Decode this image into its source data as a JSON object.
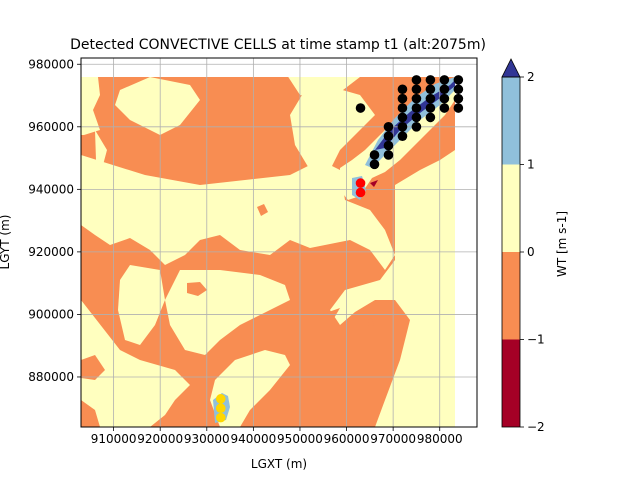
{
  "chart_data": {
    "type": "contour-scatter",
    "title": "Detected CONVECTIVE CELLS at time stamp t1 (alt:2075m)",
    "xlabel": "LGXT (m)",
    "ylabel": "LGYT (m)",
    "xlim": [
      903000,
      988000
    ],
    "ylim": [
      864000,
      982000
    ],
    "field_extent": {
      "x": [
        903000,
        984000
      ],
      "y": [
        864000,
        975000
      ]
    },
    "x_ticks": [
      910000,
      920000,
      930000,
      940000,
      950000,
      960000,
      970000,
      980000
    ],
    "x_tick_labels": [
      "910000",
      "920000",
      "930000",
      "940000",
      "950000",
      "960000",
      "970000",
      "980000"
    ],
    "y_ticks": [
      880000,
      900000,
      920000,
      940000,
      960000,
      980000
    ],
    "y_tick_labels": [
      "880000",
      "900000",
      "920000",
      "940000",
      "960000",
      "980000"
    ],
    "grid": true,
    "colorbar": {
      "label": "WT [m s-1]",
      "levels": [
        -2,
        -1,
        0,
        1,
        2
      ],
      "tick_labels": [
        "−2",
        "−1",
        "0",
        "1",
        "2"
      ],
      "colors": [
        "#a50026",
        "#f88d52",
        "#ffffbf",
        "#90c0db",
        "#313695"
      ],
      "extend": "max"
    },
    "cells": [
      {
        "color": "#000000",
        "points": [
          [
            975000,
            975000
          ],
          [
            978000,
            975000
          ],
          [
            981000,
            975000
          ],
          [
            984000,
            975000
          ],
          [
            972000,
            972000
          ],
          [
            975000,
            972000
          ],
          [
            978000,
            972000
          ],
          [
            981000,
            972000
          ],
          [
            984000,
            972000
          ],
          [
            972000,
            969000
          ],
          [
            975000,
            969000
          ],
          [
            978000,
            969000
          ],
          [
            981000,
            969000
          ],
          [
            984000,
            969000
          ],
          [
            963000,
            966000
          ],
          [
            972000,
            966000
          ],
          [
            975000,
            966000
          ],
          [
            978000,
            966000
          ],
          [
            981000,
            966000
          ],
          [
            984000,
            966000
          ],
          [
            972000,
            963000
          ],
          [
            975000,
            963000
          ],
          [
            978000,
            963000
          ],
          [
            969000,
            960000
          ],
          [
            972000,
            960000
          ],
          [
            975000,
            960000
          ],
          [
            969000,
            957000
          ],
          [
            972000,
            957000
          ],
          [
            969000,
            954000
          ],
          [
            966000,
            951000
          ],
          [
            969000,
            951000
          ],
          [
            966000,
            948000
          ]
        ]
      },
      {
        "color": "#ff0000",
        "points": [
          [
            963000,
            942000
          ],
          [
            963000,
            939000
          ]
        ]
      },
      {
        "color": "#ffd700",
        "points": [
          [
            933000,
            873000
          ],
          [
            933000,
            870000
          ],
          [
            933000,
            867000
          ]
        ]
      }
    ]
  }
}
